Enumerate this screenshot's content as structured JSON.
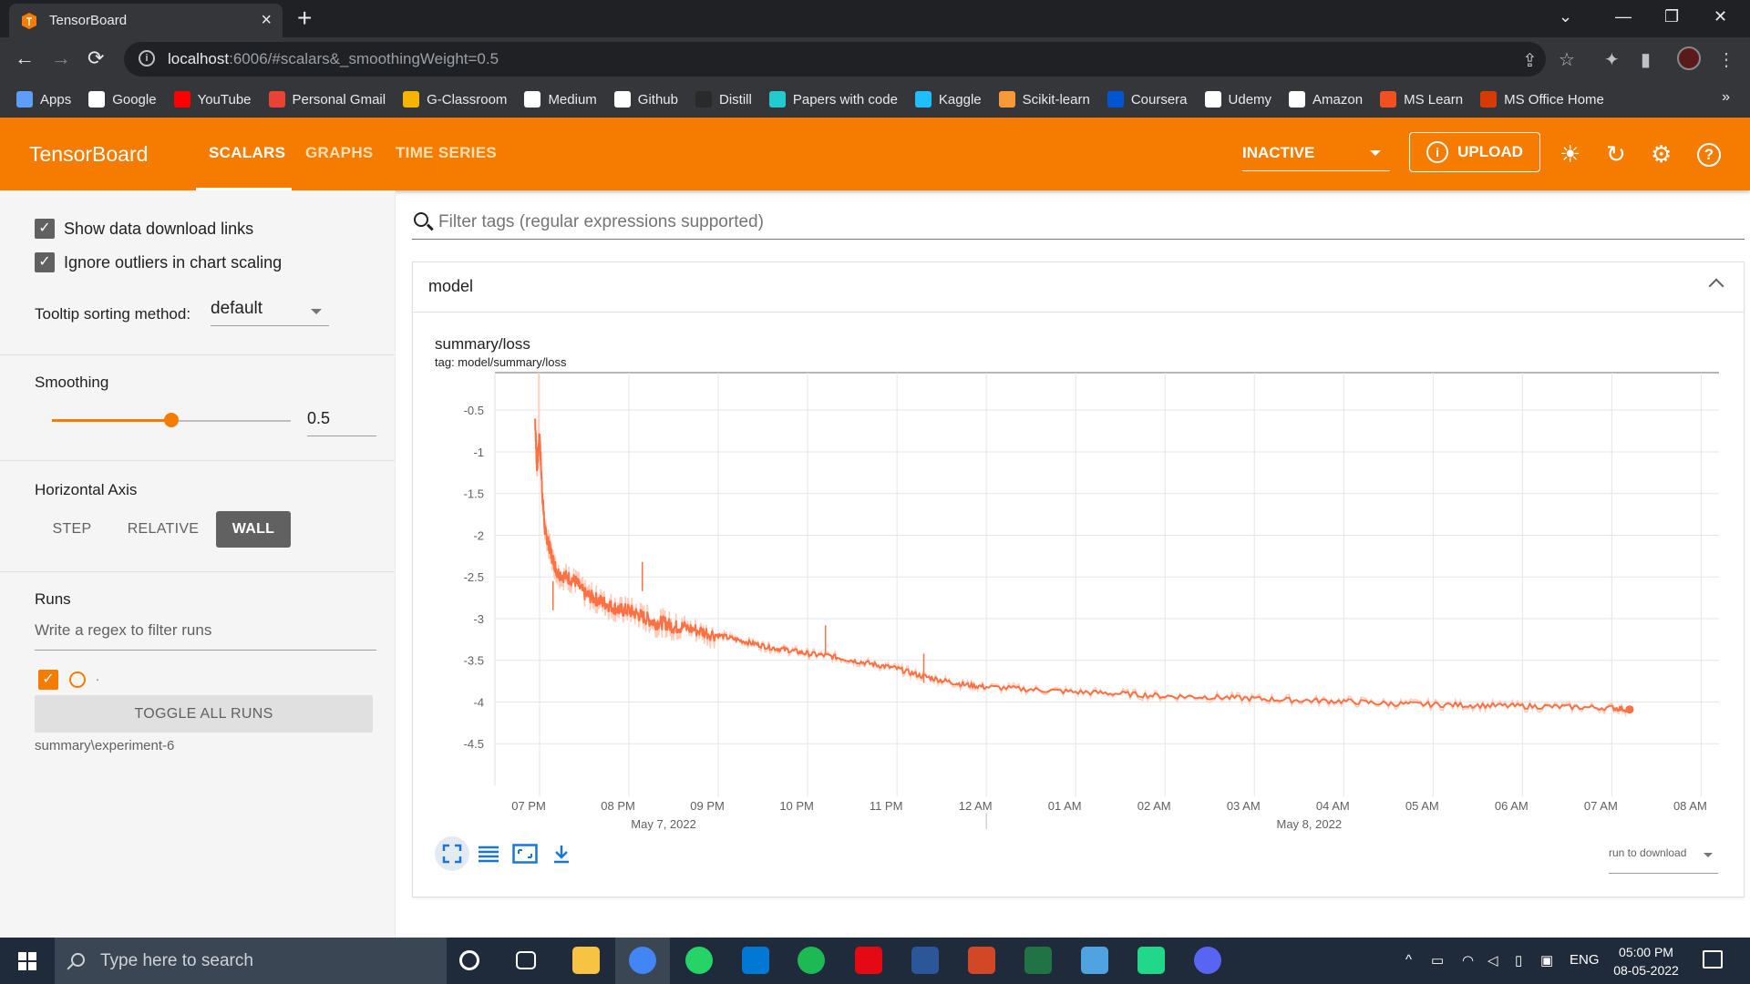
{
  "browser": {
    "tab_title": "TensorBoard",
    "url_host": "localhost",
    "url_path": ":6006/#scalars&_smoothingWeight=0.5",
    "bookmarks": [
      {
        "label": "Apps",
        "color": "#5f9ef8"
      },
      {
        "label": "Google",
        "color": "#ffffff"
      },
      {
        "label": "YouTube",
        "color": "#ff0000"
      },
      {
        "label": "Personal Gmail",
        "color": "#ea4335"
      },
      {
        "label": "G-Classroom",
        "color": "#f4b400"
      },
      {
        "label": "Medium",
        "color": "#ffffff"
      },
      {
        "label": "Github",
        "color": "#ffffff"
      },
      {
        "label": "Distill",
        "color": "#2a2a2a"
      },
      {
        "label": "Papers with code",
        "color": "#21cbce"
      },
      {
        "label": "Kaggle",
        "color": "#20beff"
      },
      {
        "label": "Scikit-learn",
        "color": "#f89939"
      },
      {
        "label": "Coursera",
        "color": "#0056d2"
      },
      {
        "label": "Udemy",
        "color": "#ffffff"
      },
      {
        "label": "Amazon",
        "color": "#ffffff"
      },
      {
        "label": "MS Learn",
        "color": "#f25022"
      },
      {
        "label": "MS Office Home",
        "color": "#d83b01"
      }
    ],
    "bookmarks_more": "»"
  },
  "header": {
    "logo": "TensorBoard",
    "tabs": [
      "SCALARS",
      "GRAPHS",
      "TIME SERIES"
    ],
    "active_tab": "SCALARS",
    "run_state": "INACTIVE",
    "upload_label": "UPLOAD",
    "accent": "#f57c00"
  },
  "sidebar": {
    "show_download_links": "Show data download links",
    "ignore_outliers": "Ignore outliers in chart scaling",
    "tooltip_sorting_label": "Tooltip sorting method:",
    "tooltip_sorting_value": "default",
    "smoothing_label": "Smoothing",
    "smoothing_value": "0.5",
    "smoothing_fraction": 0.5,
    "horizontal_axis_label": "Horizontal Axis",
    "axis_options": [
      "STEP",
      "RELATIVE",
      "WALL"
    ],
    "axis_selected": "WALL",
    "runs_label": "Runs",
    "runs_filter_placeholder": "Write a regex to filter runs",
    "run_dot": ".",
    "toggle_all_label": "TOGGLE ALL RUNS",
    "run_name": "summary\\experiment-6"
  },
  "main": {
    "filter_placeholder": "Filter tags (regular expressions supported)",
    "card_title": "model",
    "chart_title": "summary/loss",
    "chart_tag": "tag: model/summary/loss",
    "run_to_download": "run to download"
  },
  "chart_data": {
    "type": "line",
    "title": "summary/loss",
    "subtitle": "tag: model/summary/loss",
    "x_axis": "wall time",
    "x_ticks": [
      "07 PM",
      "08 PM",
      "09 PM",
      "10 PM",
      "11 PM",
      "12 AM",
      "01 AM",
      "02 AM",
      "03 AM",
      "04 AM",
      "05 AM",
      "06 AM",
      "07 AM",
      "08 AM"
    ],
    "x_date_labels": [
      "May 7, 2022",
      "May 8, 2022"
    ],
    "x_range_hours": [
      18.5,
      32.2
    ],
    "y_ticks": [
      "-0.5",
      "-1",
      "-1.5",
      "-2",
      "-2.5",
      "-3",
      "-3.5",
      "-4",
      "-4.5"
    ],
    "y_range": [
      -5.0,
      -0.05
    ],
    "grid": true,
    "series": [
      {
        "color": "#ff7043",
        "raw_color": "#ffccbc",
        "points": [
          [
            18.95,
            -0.6
          ],
          [
            18.97,
            -1.2
          ],
          [
            19.0,
            -0.8
          ],
          [
            19.03,
            -1.5
          ],
          [
            19.06,
            -1.95
          ],
          [
            19.1,
            -2.1
          ],
          [
            19.15,
            -2.3
          ],
          [
            19.2,
            -2.45
          ],
          [
            19.3,
            -2.5
          ],
          [
            19.4,
            -2.55
          ],
          [
            19.5,
            -2.7
          ],
          [
            19.6,
            -2.75
          ],
          [
            19.7,
            -2.8
          ],
          [
            19.8,
            -2.85
          ],
          [
            19.9,
            -2.9
          ],
          [
            20.0,
            -2.9
          ],
          [
            20.1,
            -2.95
          ],
          [
            20.2,
            -3.0
          ],
          [
            20.3,
            -3.05
          ],
          [
            20.4,
            -3.05
          ],
          [
            20.5,
            -3.1
          ],
          [
            20.6,
            -3.1
          ],
          [
            20.8,
            -3.15
          ],
          [
            21.0,
            -3.2
          ],
          [
            21.2,
            -3.25
          ],
          [
            21.4,
            -3.3
          ],
          [
            21.6,
            -3.35
          ],
          [
            21.8,
            -3.38
          ],
          [
            22.0,
            -3.42
          ],
          [
            22.25,
            -3.45
          ],
          [
            22.5,
            -3.5
          ],
          [
            22.75,
            -3.55
          ],
          [
            23.0,
            -3.6
          ],
          [
            23.25,
            -3.68
          ],
          [
            23.5,
            -3.74
          ],
          [
            23.75,
            -3.79
          ],
          [
            24.0,
            -3.82
          ],
          [
            24.5,
            -3.85
          ],
          [
            25.0,
            -3.88
          ],
          [
            25.5,
            -3.9
          ],
          [
            26.0,
            -3.93
          ],
          [
            26.5,
            -3.94
          ],
          [
            27.0,
            -3.96
          ],
          [
            27.5,
            -3.98
          ],
          [
            28.0,
            -3.99
          ],
          [
            28.5,
            -4.02
          ],
          [
            29.0,
            -4.03
          ],
          [
            29.5,
            -4.04
          ],
          [
            30.0,
            -4.05
          ],
          [
            30.5,
            -4.06
          ],
          [
            31.0,
            -4.07
          ],
          [
            31.2,
            -4.09
          ]
        ],
        "spikes": [
          [
            19.15,
            -2.55
          ],
          [
            20.15,
            -2.32
          ],
          [
            22.2,
            -3.08
          ],
          [
            23.3,
            -3.42
          ]
        ]
      }
    ]
  },
  "taskbar": {
    "search_placeholder": "Type here to search",
    "lang": "ENG",
    "time": "05:00 PM",
    "date": "08-05-2022",
    "apps": [
      {
        "name": "cortana",
        "color": "#ffffff"
      },
      {
        "name": "task-view",
        "color": "#ffffff"
      },
      {
        "name": "file-explorer",
        "color": "#f6c342"
      },
      {
        "name": "chrome",
        "color": "#4285f4"
      },
      {
        "name": "whatsapp",
        "color": "#25d366"
      },
      {
        "name": "outlook",
        "color": "#0078d4"
      },
      {
        "name": "spotify",
        "color": "#1db954"
      },
      {
        "name": "netflix",
        "color": "#e50914"
      },
      {
        "name": "word",
        "color": "#2b579a"
      },
      {
        "name": "powerpoint",
        "color": "#d24726"
      },
      {
        "name": "excel",
        "color": "#217346"
      },
      {
        "name": "control-panel",
        "color": "#4fa3e0"
      },
      {
        "name": "pycharm",
        "color": "#21d789"
      },
      {
        "name": "discord",
        "color": "#5865f2"
      }
    ]
  }
}
